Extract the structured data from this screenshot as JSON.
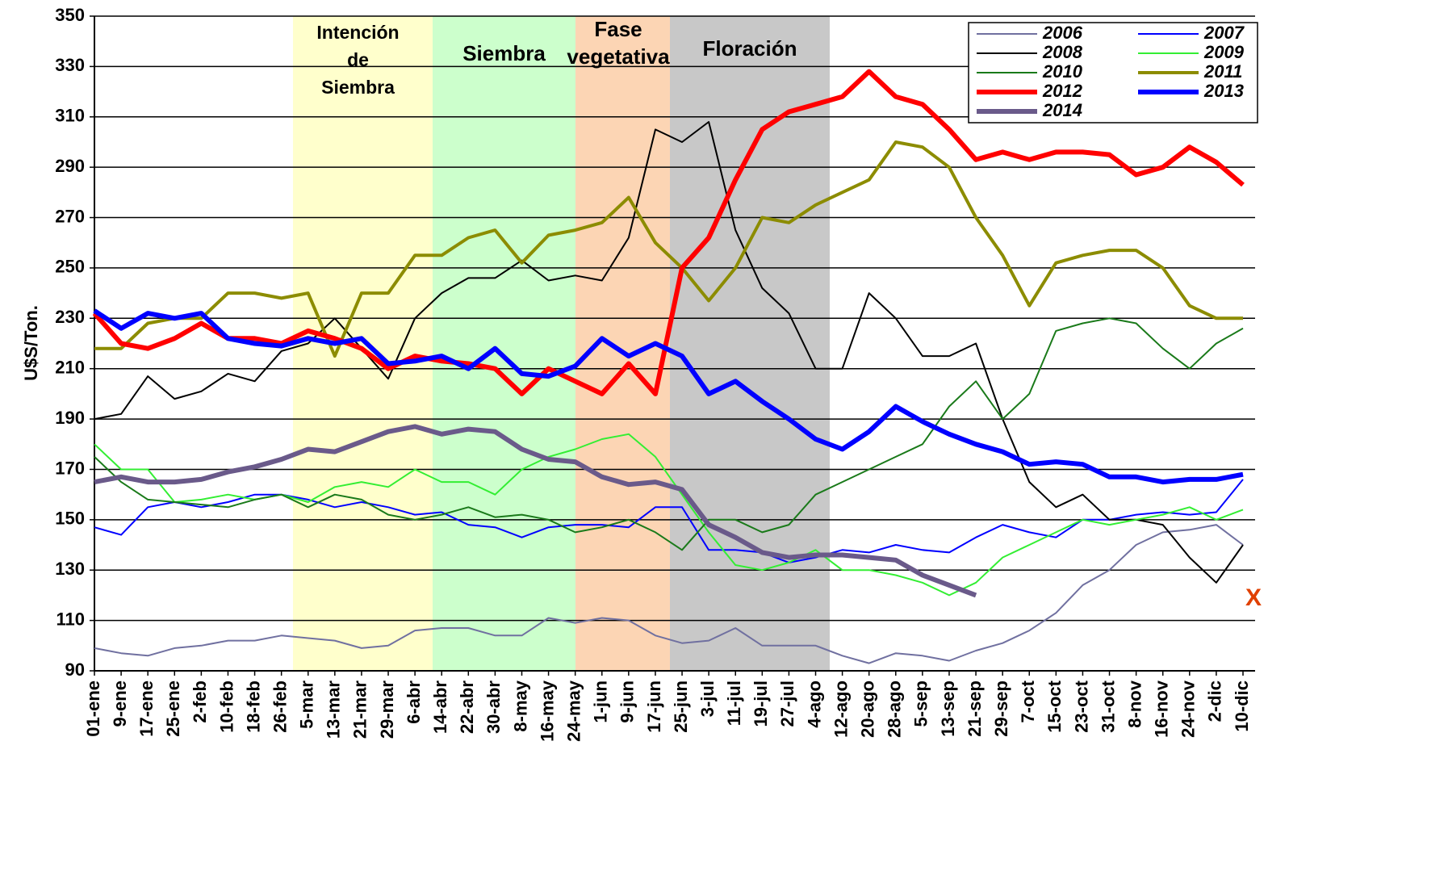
{
  "chart_data": {
    "type": "line",
    "y_label": "U$S/Ton.",
    "categories": [
      "01-ene",
      "9-ene",
      "17-ene",
      "25-ene",
      "2-feb",
      "10-feb",
      "18-feb",
      "26-feb",
      "5-mar",
      "13-mar",
      "21-mar",
      "29-mar",
      "6-abr",
      "14-abr",
      "22-abr",
      "30-abr",
      "8-may",
      "16-may",
      "24-may",
      "1-jun",
      "9-jun",
      "17-jun",
      "25-jun",
      "3-jul",
      "11-jul",
      "19-jul",
      "27-jul",
      "4-ago",
      "12-ago",
      "20-ago",
      "28-ago",
      "5-sep",
      "13-sep",
      "21-sep",
      "29-sep",
      "7-oct",
      "15-oct",
      "23-oct",
      "31-oct",
      "8-nov",
      "16-nov",
      "24-nov",
      "2-dic",
      "10-dic"
    ],
    "ylim": [
      90,
      350
    ],
    "yticks": [
      90,
      110,
      130,
      150,
      170,
      190,
      210,
      230,
      250,
      270,
      290,
      310,
      330,
      350
    ],
    "grid": true,
    "legend": "upper right",
    "bands": [
      {
        "lines": [
          "Intención",
          "de",
          "Siembra"
        ],
        "color": "#ffffcc"
      },
      {
        "lines": [
          "Siembra"
        ],
        "color": "#ccffcc"
      },
      {
        "lines": [
          "Fase",
          "vegetativa"
        ],
        "color": "#fcd5b4"
      },
      {
        "lines": [
          "Floración"
        ],
        "color": "#c8c8c8"
      }
    ],
    "annotation": "X",
    "series": [
      {
        "name": "2006",
        "color": "#7070a0",
        "width": 2,
        "values": [
          99,
          97,
          96,
          99,
          100,
          102,
          102,
          104,
          103,
          102,
          99,
          100,
          106,
          107,
          107,
          104,
          104,
          111,
          109,
          111,
          110,
          104,
          101,
          102,
          107,
          100,
          100,
          100,
          96,
          93,
          97,
          96,
          94,
          98,
          101,
          106,
          113,
          124,
          130,
          140,
          145,
          146,
          148,
          140
        ]
      },
      {
        "name": "2007",
        "color": "#0000ff",
        "width": 2,
        "values": [
          147,
          144,
          155,
          157,
          155,
          157,
          160,
          160,
          158,
          155,
          157,
          155,
          152,
          153,
          148,
          147,
          143,
          147,
          148,
          148,
          147,
          155,
          155,
          138,
          138,
          137,
          133,
          135,
          138,
          137,
          140,
          138,
          137,
          143,
          148,
          145,
          143,
          150,
          150,
          152,
          153,
          152,
          153,
          166
        ]
      },
      {
        "name": "2008",
        "color": "#000000",
        "width": 2,
        "values": [
          190,
          192,
          207,
          198,
          201,
          208,
          205,
          217,
          220,
          230,
          218,
          206,
          230,
          240,
          246,
          246,
          253,
          245,
          247,
          245,
          262,
          305,
          300,
          308,
          265,
          242,
          232,
          210,
          210,
          240,
          230,
          215,
          215,
          220,
          190,
          165,
          155,
          160,
          150,
          150,
          148,
          135,
          125,
          140
        ]
      },
      {
        "name": "2009",
        "color": "#33ee33",
        "width": 2,
        "values": [
          180,
          170,
          170,
          157,
          158,
          160,
          158,
          160,
          157,
          163,
          165,
          163,
          170,
          165,
          165,
          160,
          170,
          175,
          178,
          182,
          184,
          175,
          160,
          145,
          132,
          130,
          133,
          138,
          130,
          130,
          128,
          125,
          120,
          125,
          135,
          140,
          145,
          150,
          148,
          150,
          152,
          155,
          150,
          154
        ]
      },
      {
        "name": "2010",
        "color": "#1a7a1a",
        "width": 2,
        "values": [
          175,
          165,
          158,
          157,
          156,
          155,
          158,
          160,
          155,
          160,
          158,
          152,
          150,
          152,
          155,
          151,
          152,
          150,
          145,
          147,
          150,
          145,
          138,
          150,
          150,
          145,
          148,
          160,
          165,
          170,
          175,
          180,
          195,
          205,
          190,
          200,
          225,
          228,
          230,
          228,
          218,
          210,
          220,
          226
        ]
      },
      {
        "name": "2011",
        "color": "#8c8c00",
        "width": 4,
        "values": [
          218,
          218,
          228,
          230,
          230,
          240,
          240,
          238,
          240,
          215,
          240,
          240,
          255,
          255,
          262,
          265,
          252,
          263,
          265,
          268,
          278,
          260,
          250,
          237,
          250,
          270,
          268,
          275,
          280,
          285,
          300,
          298,
          290,
          270,
          255,
          235,
          252,
          255,
          257,
          257,
          250,
          235,
          230,
          230
        ]
      },
      {
        "name": "2012",
        "color": "#ff0000",
        "width": 6,
        "values": [
          232,
          220,
          218,
          222,
          228,
          222,
          222,
          220,
          225,
          222,
          218,
          210,
          215,
          213,
          212,
          210,
          200,
          210,
          205,
          200,
          212,
          200,
          250,
          262,
          285,
          305,
          312,
          315,
          318,
          328,
          318,
          315,
          305,
          293,
          296,
          293,
          296,
          296,
          295,
          287,
          290,
          298,
          292,
          283
        ]
      },
      {
        "name": "2013",
        "color": "#0000ff",
        "width": 6,
        "values": [
          233,
          226,
          232,
          230,
          232,
          222,
          220,
          219,
          222,
          220,
          222,
          212,
          213,
          215,
          210,
          218,
          208,
          207,
          211,
          222,
          215,
          220,
          215,
          200,
          205,
          197,
          190,
          182,
          178,
          185,
          195,
          189,
          184,
          180,
          177,
          172,
          173,
          172,
          167,
          167,
          165,
          166,
          166,
          168
        ]
      },
      {
        "name": "2014",
        "color": "#6a5a8a",
        "width": 6,
        "values": [
          165,
          167,
          165,
          165,
          166,
          169,
          171,
          174,
          178,
          177,
          181,
          185,
          187,
          184,
          186,
          185,
          178,
          174,
          173,
          167,
          164,
          165,
          162,
          148,
          143,
          137,
          135,
          136,
          136,
          135,
          134,
          128,
          124,
          120,
          null,
          null,
          null,
          null,
          null,
          null,
          null,
          null,
          null,
          null
        ]
      }
    ]
  }
}
